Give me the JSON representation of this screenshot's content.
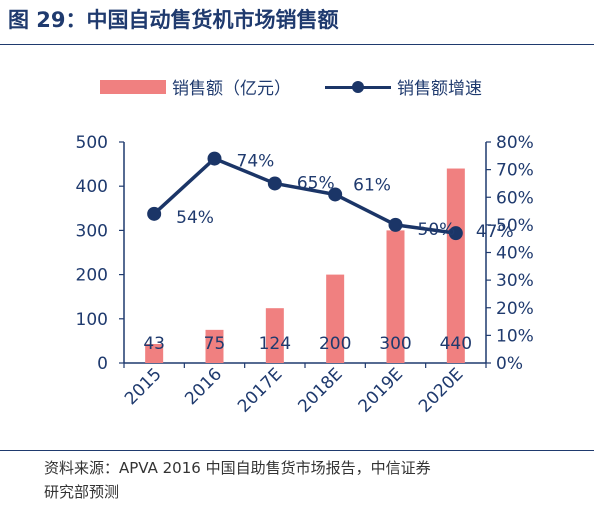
{
  "title": "图 29：中国自动售货机市场销售额",
  "colors": {
    "bar": "#f08080",
    "line": "#1b3567",
    "text": "#1f3a6e"
  },
  "legend": {
    "bar_label": "销售额（亿元）",
    "line_label": "销售额增速"
  },
  "source": {
    "line1": "资料来源：APVA 2016 中国自助售货市场报告，中信证券",
    "line2": "研究部预测"
  },
  "chart_data": {
    "type": "bar",
    "categories": [
      "2015",
      "2016",
      "2017E",
      "2018E",
      "2019E",
      "2020E"
    ],
    "series": [
      {
        "name": "销售额（亿元）",
        "type": "bar",
        "axis": "left",
        "values": [
          43,
          75,
          124,
          200,
          300,
          440
        ],
        "data_labels": [
          "43",
          "75",
          "124",
          "200",
          "300",
          "440"
        ]
      },
      {
        "name": "销售额增速",
        "type": "line",
        "axis": "right",
        "values": [
          54,
          74,
          65,
          61,
          50,
          47
        ],
        "data_labels": [
          "54%",
          "74%",
          "65%",
          "61%",
          "50%",
          "47%"
        ]
      }
    ],
    "y_left": {
      "ylim": [
        0,
        500
      ],
      "ticks": [
        "0",
        "100",
        "200",
        "300",
        "400",
        "500"
      ]
    },
    "y_right": {
      "ylim": [
        0,
        80
      ],
      "ticks": [
        "0%",
        "10%",
        "20%",
        "30%",
        "40%",
        "50%",
        "60%",
        "70%",
        "80%"
      ]
    },
    "grid": false,
    "legend_position": "top"
  }
}
